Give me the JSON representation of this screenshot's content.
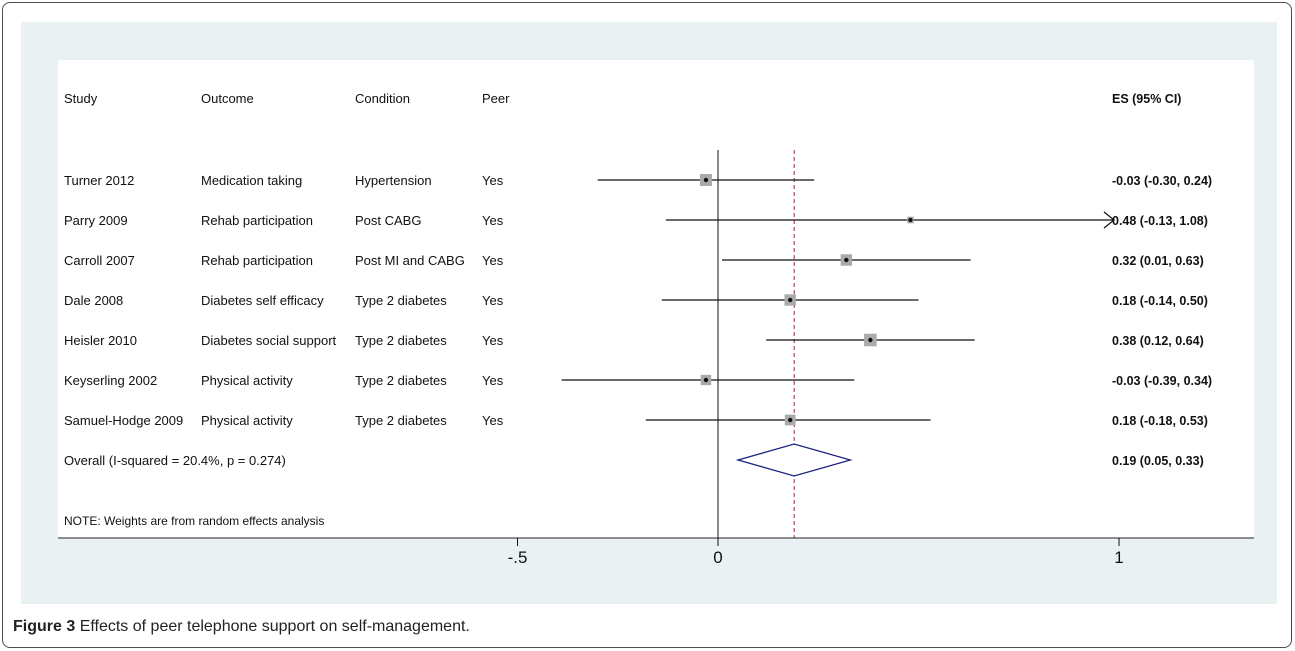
{
  "figure": {
    "caption_label": "Figure 3",
    "caption_text": "Effects of peer telephone support on self-management."
  },
  "table": {
    "headers": {
      "study": "Study",
      "outcome": "Outcome",
      "condition": "Condition",
      "peer": "Peer",
      "es": "ES (95% CI)"
    },
    "rows": [
      {
        "study": "Turner 2012",
        "outcome": "Medication taking",
        "condition": "Hypertension",
        "peer": "Yes",
        "es_label": "-0.03 (-0.30, 0.24)"
      },
      {
        "study": "Parry 2009",
        "outcome": "Rehab participation",
        "condition": "Post CABG",
        "peer": "Yes",
        "es_label": "0.48 (-0.13, 1.08)"
      },
      {
        "study": "Carroll 2007",
        "outcome": "Rehab participation",
        "condition": "Post MI and CABG",
        "peer": "Yes",
        "es_label": "0.32 (0.01, 0.63)"
      },
      {
        "study": "Dale 2008",
        "outcome": "Diabetes self efficacy",
        "condition": "Type 2 diabetes",
        "peer": "Yes",
        "es_label": "0.18 (-0.14, 0.50)"
      },
      {
        "study": "Heisler 2010",
        "outcome": "Diabetes social support",
        "condition": "Type 2 diabetes",
        "peer": "Yes",
        "es_label": "0.38 (0.12, 0.64)"
      },
      {
        "study": "Keyserling 2002",
        "outcome": "Physical activity",
        "condition": "Type 2 diabetes",
        "peer": "Yes",
        "es_label": "-0.03 (-0.39, 0.34)"
      },
      {
        "study": "Samuel-Hodge 2009",
        "outcome": "Physical activity",
        "condition": "Type 2 diabetes",
        "peer": "Yes",
        "es_label": "0.18 (-0.18, 0.53)"
      }
    ],
    "overall": {
      "label": "Overall  (I-squared = 20.4%, p = 0.274)",
      "es_label": "0.19 (0.05, 0.33)"
    },
    "note": "NOTE: Weights are from random effects analysis"
  },
  "chart_data": {
    "type": "forest",
    "studies": [
      {
        "name": "Turner 2012",
        "es": -0.03,
        "lower": -0.3,
        "upper": 0.24,
        "weight": 1.0
      },
      {
        "name": "Parry 2009",
        "es": 0.48,
        "lower": -0.13,
        "upper": 1.08,
        "weight": 0.3,
        "upper_truncated": true
      },
      {
        "name": "Carroll 2007",
        "es": 0.32,
        "lower": 0.01,
        "upper": 0.63,
        "weight": 0.9
      },
      {
        "name": "Dale 2008",
        "es": 0.18,
        "lower": -0.14,
        "upper": 0.5,
        "weight": 0.9
      },
      {
        "name": "Heisler 2010",
        "es": 0.38,
        "lower": 0.12,
        "upper": 0.64,
        "weight": 1.1
      },
      {
        "name": "Keyserling 2002",
        "es": -0.03,
        "lower": -0.39,
        "upper": 0.34,
        "weight": 0.75
      },
      {
        "name": "Samuel-Hodge 2009",
        "es": 0.18,
        "lower": -0.18,
        "upper": 0.53,
        "weight": 0.8
      }
    ],
    "overall": {
      "es": 0.19,
      "lower": 0.05,
      "upper": 0.33
    },
    "x_ticks": [
      -0.5,
      0,
      1
    ],
    "x_tick_labels": [
      "-.5",
      "0",
      "1"
    ],
    "xlim": [
      -0.98,
      1.0
    ],
    "null_line": 0,
    "colors": {
      "panel_bg": "#e9f1f2",
      "plot_bg": "#ffffff",
      "box": "#aaaaaa",
      "diamond": "#1a237e",
      "overall_line": "#b22222"
    }
  }
}
